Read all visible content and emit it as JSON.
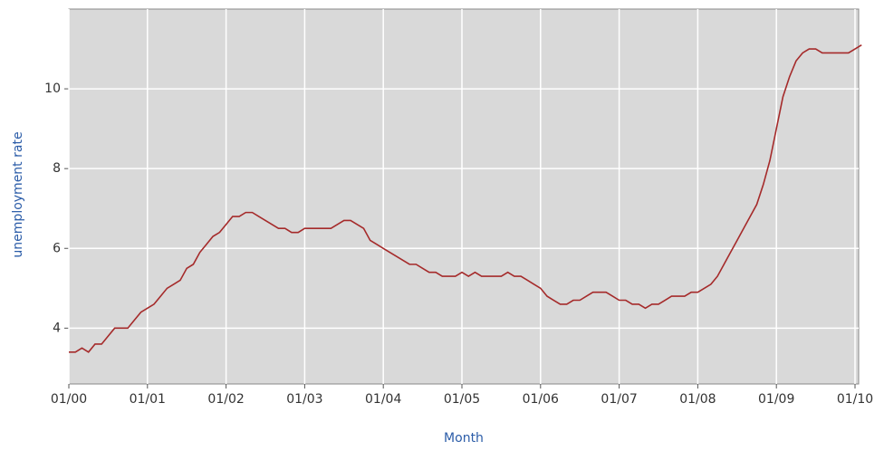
{
  "chart_data": {
    "type": "line",
    "xlabel": "Month",
    "ylabel": "unemployment rate",
    "x": [
      "01/00",
      "02/00",
      "03/00",
      "04/00",
      "05/00",
      "06/00",
      "07/00",
      "08/00",
      "09/00",
      "10/00",
      "11/00",
      "12/00",
      "01/01",
      "02/01",
      "03/01",
      "04/01",
      "05/01",
      "06/01",
      "07/01",
      "08/01",
      "09/01",
      "10/01",
      "11/01",
      "12/01",
      "01/02",
      "02/02",
      "03/02",
      "04/02",
      "05/02",
      "06/02",
      "07/02",
      "08/02",
      "09/02",
      "10/02",
      "11/02",
      "12/02",
      "01/03",
      "02/03",
      "03/03",
      "04/03",
      "05/03",
      "06/03",
      "07/03",
      "08/03",
      "09/03",
      "10/03",
      "11/03",
      "12/03",
      "01/04",
      "02/04",
      "03/04",
      "04/04",
      "05/04",
      "06/04",
      "07/04",
      "08/04",
      "09/04",
      "10/04",
      "11/04",
      "12/04",
      "01/05",
      "02/05",
      "03/05",
      "04/05",
      "05/05",
      "06/05",
      "07/05",
      "08/05",
      "09/05",
      "10/05",
      "11/05",
      "12/05",
      "01/06",
      "02/06",
      "03/06",
      "04/06",
      "05/06",
      "06/06",
      "07/06",
      "08/06",
      "09/06",
      "10/06",
      "11/06",
      "12/06",
      "01/07",
      "02/07",
      "03/07",
      "04/07",
      "05/07",
      "06/07",
      "07/07",
      "08/07",
      "09/07",
      "10/07",
      "11/07",
      "12/07",
      "01/08",
      "02/08",
      "03/08",
      "04/08",
      "05/08",
      "06/08",
      "07/08",
      "08/08",
      "09/08",
      "10/08",
      "11/08",
      "12/08",
      "01/09",
      "02/09",
      "03/09",
      "04/09",
      "05/09",
      "06/09",
      "07/09",
      "08/09",
      "09/09",
      "10/09",
      "11/09",
      "12/09",
      "01/10",
      "02/10"
    ],
    "values": [
      3.4,
      3.4,
      3.5,
      3.4,
      3.6,
      3.6,
      3.8,
      4.0,
      4.0,
      4.0,
      4.2,
      4.4,
      4.5,
      4.6,
      4.8,
      5.0,
      5.1,
      5.2,
      5.5,
      5.6,
      5.9,
      6.1,
      6.3,
      6.4,
      6.6,
      6.8,
      6.8,
      6.9,
      6.9,
      6.8,
      6.7,
      6.6,
      6.5,
      6.5,
      6.4,
      6.4,
      6.5,
      6.5,
      6.5,
      6.5,
      6.5,
      6.6,
      6.7,
      6.7,
      6.6,
      6.5,
      6.2,
      6.1,
      6.0,
      5.9,
      5.8,
      5.7,
      5.6,
      5.6,
      5.5,
      5.4,
      5.4,
      5.3,
      5.3,
      5.3,
      5.4,
      5.3,
      5.4,
      5.3,
      5.3,
      5.3,
      5.3,
      5.4,
      5.3,
      5.3,
      5.2,
      5.1,
      5.0,
      4.8,
      4.7,
      4.6,
      4.6,
      4.7,
      4.7,
      4.8,
      4.9,
      4.9,
      4.9,
      4.8,
      4.7,
      4.7,
      4.6,
      4.6,
      4.5,
      4.6,
      4.6,
      4.7,
      4.8,
      4.8,
      4.8,
      4.9,
      4.9,
      5.0,
      5.1,
      5.3,
      5.6,
      5.9,
      6.2,
      6.5,
      6.8,
      7.1,
      7.6,
      8.2,
      9.0,
      9.8,
      10.3,
      10.7,
      10.9,
      11.0,
      11.0,
      10.9,
      10.9,
      10.9,
      10.9,
      10.9,
      11.0,
      11.1
    ],
    "color": "#a52a2a",
    "xticks": [
      "01/00",
      "01/01",
      "01/02",
      "01/03",
      "01/04",
      "01/05",
      "01/06",
      "01/07",
      "01/08",
      "01/09",
      "01/10"
    ],
    "ylim": [
      2.6,
      12
    ],
    "yticks": [
      4,
      6,
      8,
      10
    ],
    "grid": true
  }
}
